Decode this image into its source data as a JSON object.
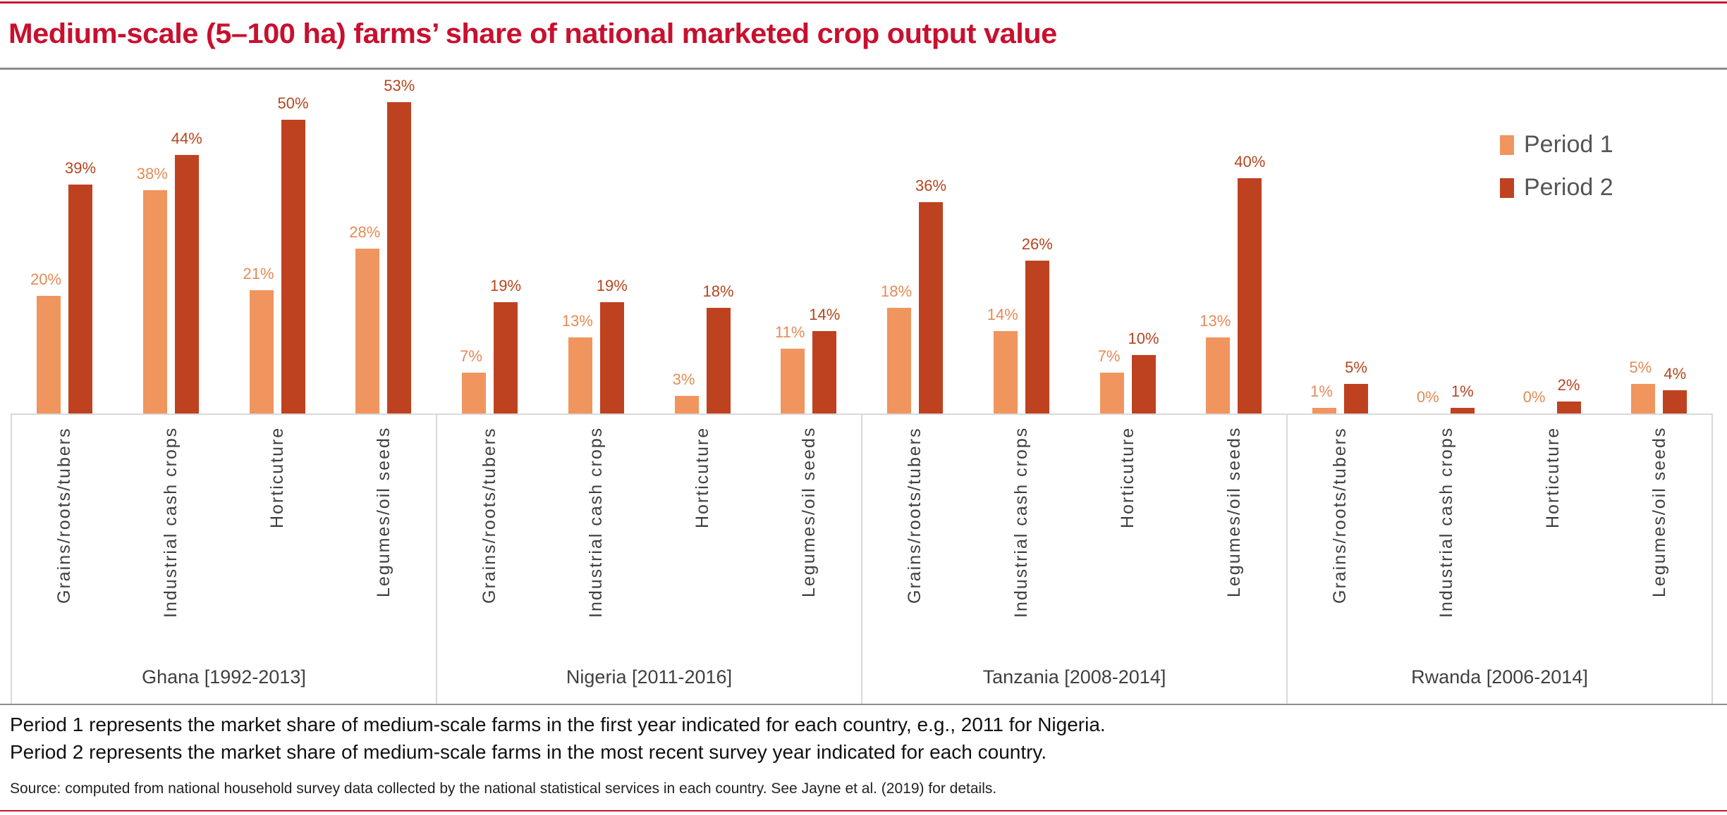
{
  "title": "Medium-scale (5–100 ha) farms’ share of national marketed crop output value",
  "chart_data": {
    "type": "bar",
    "title": "Medium-scale (5–100 ha) farms’ share of national marketed crop output value",
    "xlabel": "",
    "ylabel": "",
    "ylim": [
      0,
      60
    ],
    "grid": false,
    "legend_position": "top-right",
    "groups": [
      "Ghana [1992-2013]",
      "Nigeria [2011-2016]",
      "Tanzania [2008-2014]",
      "Rwanda [2006-2014]"
    ],
    "categories": [
      "Grains/roots/tubers",
      "Industrial cash crops",
      "Horticuture",
      "Legumes/oil seeds"
    ],
    "series": [
      {
        "name": "Period 1",
        "color": "#f0955e",
        "label_color": "#e58a55",
        "values": [
          [
            20,
            38,
            21,
            28
          ],
          [
            7,
            13,
            3,
            11
          ],
          [
            18,
            14,
            7,
            13
          ],
          [
            1,
            0,
            0,
            5
          ]
        ]
      },
      {
        "name": "Period 2",
        "color": "#bf4220",
        "label_color": "#b5451f",
        "values": [
          [
            39,
            44,
            50,
            53
          ],
          [
            19,
            19,
            18,
            14
          ],
          [
            36,
            26,
            10,
            40
          ],
          [
            5,
            1,
            2,
            4
          ]
        ]
      }
    ]
  },
  "notes": [
    "Period 1 represents the market share of medium-scale farms in the first year indicated for each country, e.g., 2011 for Nigeria.",
    "Period 2 represents the market share of medium-scale farms in the most recent survey year indicated for each country."
  ],
  "source": "Source: computed from national household survey data collected by the national statistical services in each country. See Jayne et al. (2019) for details.",
  "colors": {
    "accent": "#c8102e",
    "rule": "#8c8c8c",
    "axis": "#d9d9d9"
  }
}
